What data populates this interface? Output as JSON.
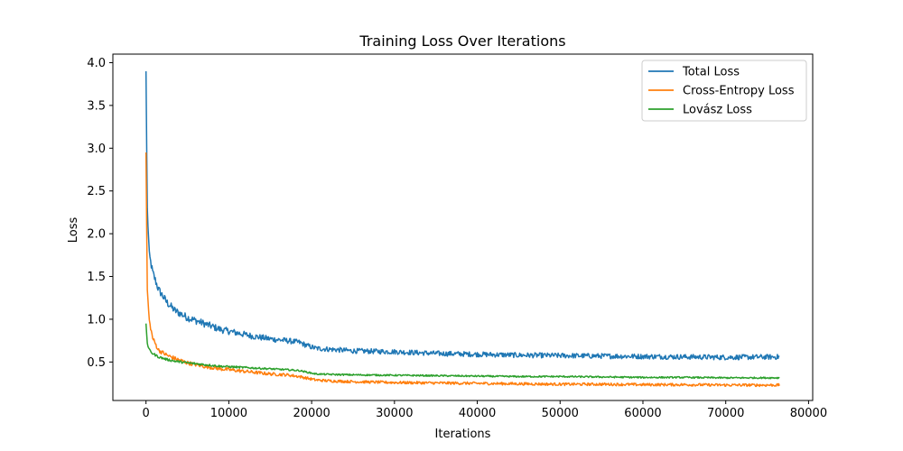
{
  "chart_data": {
    "type": "line",
    "title": "Training Loss Over Iterations",
    "xlabel": "Iterations",
    "ylabel": "Loss",
    "xlim": [
      -4000,
      80500
    ],
    "ylim": [
      0.05,
      4.1
    ],
    "xticks": [
      0,
      10000,
      20000,
      30000,
      40000,
      50000,
      60000,
      70000,
      80000
    ],
    "xtick_labels": [
      "0",
      "10000",
      "20000",
      "30000",
      "40000",
      "50000",
      "60000",
      "70000",
      "80000"
    ],
    "yticks": [
      0.5,
      1.0,
      1.5,
      2.0,
      2.5,
      3.0,
      3.5,
      4.0
    ],
    "ytick_labels": [
      "0.5",
      "1.0",
      "1.5",
      "2.0",
      "2.5",
      "3.0",
      "3.5",
      "4.0"
    ],
    "grid": false,
    "legend_position": "top-right",
    "series": [
      {
        "name": "Total Loss",
        "color": "#1f77b4",
        "noise": 0.03,
        "x": [
          0,
          150,
          400,
          800,
          1500,
          2500,
          3500,
          5000,
          7000,
          9000,
          11000,
          13000,
          15000,
          17000,
          18500,
          19500,
          20500,
          22000,
          25000,
          30000,
          35000,
          40000,
          45000,
          50000,
          55000,
          60000,
          65000,
          70000,
          76500
        ],
        "y": [
          3.9,
          2.3,
          1.75,
          1.55,
          1.35,
          1.2,
          1.1,
          1.02,
          0.95,
          0.88,
          0.84,
          0.8,
          0.77,
          0.75,
          0.73,
          0.69,
          0.66,
          0.65,
          0.63,
          0.62,
          0.6,
          0.59,
          0.58,
          0.575,
          0.57,
          0.565,
          0.56,
          0.555,
          0.56
        ]
      },
      {
        "name": "Cross-Entropy Loss",
        "color": "#ff7f0e",
        "noise": 0.016,
        "x": [
          0,
          150,
          400,
          800,
          1500,
          2500,
          3500,
          5000,
          7000,
          9000,
          11000,
          13000,
          15000,
          17000,
          18500,
          19500,
          20500,
          22000,
          25000,
          30000,
          35000,
          40000,
          45000,
          50000,
          55000,
          60000,
          65000,
          70000,
          76500
        ],
        "y": [
          2.95,
          1.35,
          0.98,
          0.78,
          0.64,
          0.58,
          0.54,
          0.49,
          0.45,
          0.42,
          0.4,
          0.38,
          0.36,
          0.35,
          0.33,
          0.31,
          0.29,
          0.28,
          0.27,
          0.26,
          0.255,
          0.25,
          0.245,
          0.24,
          0.24,
          0.235,
          0.235,
          0.23,
          0.23
        ]
      },
      {
        "name": "Lovász Loss",
        "color": "#2ca02c",
        "noise": 0.009,
        "x": [
          0,
          150,
          400,
          800,
          1500,
          2500,
          3500,
          5000,
          7000,
          9000,
          11000,
          13000,
          15000,
          17000,
          18500,
          19500,
          20500,
          22000,
          25000,
          30000,
          35000,
          40000,
          45000,
          50000,
          55000,
          60000,
          65000,
          70000,
          76500
        ],
        "y": [
          0.95,
          0.72,
          0.64,
          0.6,
          0.56,
          0.53,
          0.51,
          0.49,
          0.47,
          0.45,
          0.44,
          0.43,
          0.42,
          0.41,
          0.4,
          0.38,
          0.36,
          0.355,
          0.35,
          0.345,
          0.34,
          0.335,
          0.33,
          0.33,
          0.325,
          0.32,
          0.32,
          0.315,
          0.315
        ]
      }
    ]
  }
}
